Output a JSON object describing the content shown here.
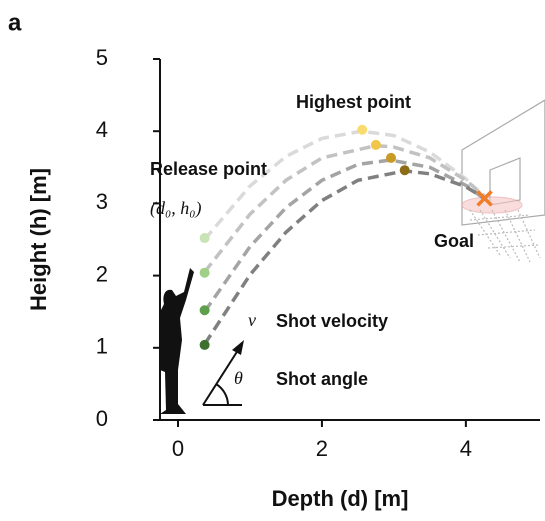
{
  "chart_data": {
    "type": "line",
    "panel": "a",
    "x_label": "Depth (d) [m]",
    "y_label": "Height (h) [m]",
    "xlim": [
      -0.25,
      5.03
    ],
    "ylim": [
      0,
      5
    ],
    "xticks": [
      0,
      2,
      4
    ],
    "yticks": [
      0,
      1,
      2,
      3,
      4,
      5
    ],
    "series": [
      {
        "color": "#dadada",
        "x": [
          0.37,
          1,
          1.5,
          2,
          2.55,
          3,
          3.5,
          4,
          4.26
        ],
        "values": [
          2.5,
          3.24,
          3.65,
          3.9,
          4.0,
          3.94,
          3.71,
          3.34,
          3.08
        ]
      },
      {
        "color": "#c2c2c2",
        "x": [
          0.37,
          1,
          1.5,
          2,
          2.75,
          3,
          3.5,
          4,
          4.26
        ],
        "values": [
          2.05,
          2.85,
          3.32,
          3.63,
          3.8,
          3.78,
          3.63,
          3.32,
          3.1
        ]
      },
      {
        "color": "#a4a4a4",
        "x": [
          0.37,
          1,
          1.5,
          2,
          2.5,
          2.95,
          3.5,
          4,
          4.26
        ],
        "values": [
          1.5,
          2.4,
          2.94,
          3.32,
          3.54,
          3.6,
          3.5,
          3.25,
          3.06
        ]
      },
      {
        "color": "#808080",
        "x": [
          0.37,
          1,
          1.5,
          2,
          2.5,
          3.15,
          3.5,
          4,
          4.26
        ],
        "values": [
          1.05,
          2.01,
          2.6,
          3.04,
          3.32,
          3.45,
          3.41,
          3.23,
          3.07
        ]
      }
    ],
    "release_points": {
      "name": "Release point",
      "label": "(d₀, h₀)",
      "x": [
        0.37,
        0.37,
        0.37,
        0.37
      ],
      "values": [
        2.52,
        2.04,
        1.52,
        1.04
      ],
      "colors": [
        "#c8e3b4",
        "#9fd087",
        "#5e9f4b",
        "#3d6f2e"
      ]
    },
    "highest_points": {
      "name": "Highest point",
      "x": [
        2.56,
        2.75,
        2.96,
        3.15
      ],
      "values": [
        4.02,
        3.81,
        3.63,
        3.46
      ],
      "colors": [
        "#f8dc70",
        "#f1c548",
        "#c99b22",
        "#8c6c16"
      ]
    },
    "goal": {
      "name": "Goal",
      "x": 4.26,
      "value": 3.07,
      "color": "#f07d2a"
    },
    "velocity": {
      "symbol": "v",
      "name": "Shot velocity"
    },
    "angle": {
      "symbol": "θ",
      "name": "Shot angle"
    }
  }
}
